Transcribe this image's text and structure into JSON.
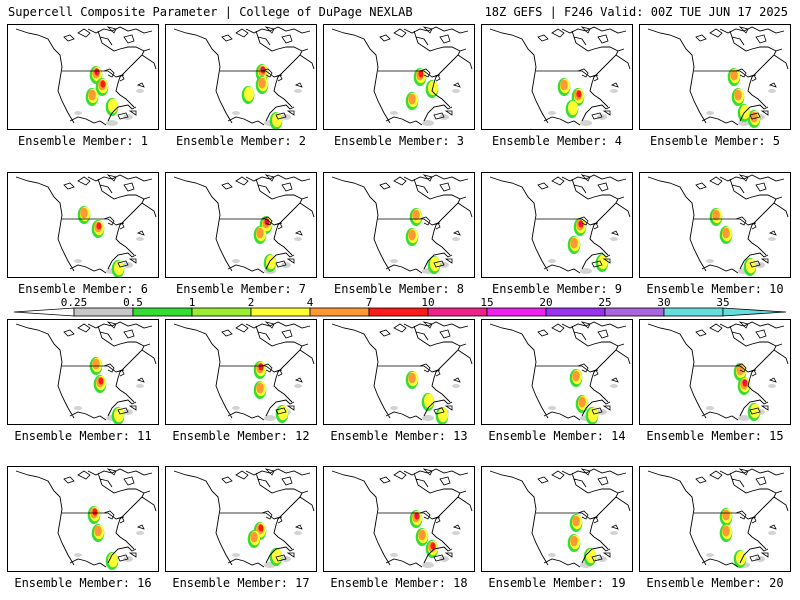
{
  "header": {
    "title": "Supercell Composite Parameter | College of DuPage NEXLAB",
    "run_info": "18Z GEFS | F246 Valid: 00Z TUE JUN 17 2025"
  },
  "legend": {
    "ticks": [
      "0.25",
      "0.5",
      "1",
      "2",
      "4",
      "7",
      "10",
      "15",
      "20",
      "25",
      "30",
      "35"
    ],
    "colors": [
      "#ffffff",
      "#c8c8c8",
      "#33dd33",
      "#99ee33",
      "#ffff33",
      "#ff9933",
      "#ff1a1a",
      "#ee2288",
      "#ee22ee",
      "#9933ee",
      "#aa66dd",
      "#66dddd"
    ]
  },
  "panels": [
    {
      "label": "Ensemble Member: 1"
    },
    {
      "label": "Ensemble Member: 2"
    },
    {
      "label": "Ensemble Member: 3"
    },
    {
      "label": "Ensemble Member: 4"
    },
    {
      "label": "Ensemble Member: 5"
    },
    {
      "label": "Ensemble Member: 6"
    },
    {
      "label": "Ensemble Member: 7"
    },
    {
      "label": "Ensemble Member: 8"
    },
    {
      "label": "Ensemble Member: 9"
    },
    {
      "label": "Ensemble Member: 10"
    },
    {
      "label": "Ensemble Member: 11"
    },
    {
      "label": "Ensemble Member: 12"
    },
    {
      "label": "Ensemble Member: 13"
    },
    {
      "label": "Ensemble Member: 14"
    },
    {
      "label": "Ensemble Member: 15"
    },
    {
      "label": "Ensemble Member: 16"
    },
    {
      "label": "Ensemble Member: 17"
    },
    {
      "label": "Ensemble Member: 18"
    },
    {
      "label": "Ensemble Member: 19"
    },
    {
      "label": "Ensemble Member: 20"
    }
  ]
}
